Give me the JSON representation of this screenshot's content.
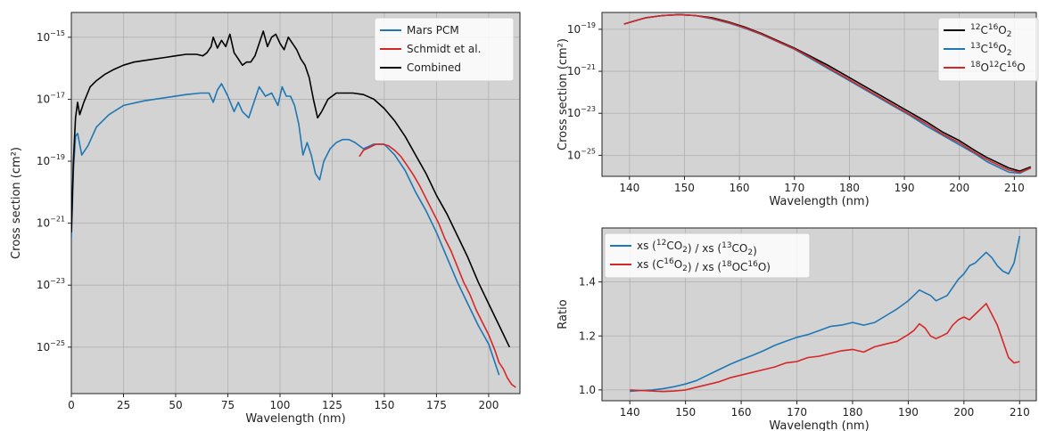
{
  "chart_data": [
    {
      "type": "line",
      "xlabel": "Wavelength (nm)",
      "ylabel": "Cross section (cm²)",
      "yscale": "log",
      "xlim": [
        0,
        215
      ],
      "ylim_log10": [
        -26.5,
        -14.2
      ],
      "xticks": [
        "0",
        "25",
        "50",
        "75",
        "100",
        "125",
        "150",
        "175",
        "200"
      ],
      "yticks": [
        "10-15",
        "10-17",
        "10-19",
        "10-21",
        "10-23",
        "10-25"
      ],
      "grid": true,
      "legend_position": "top-right",
      "series": [
        {
          "name": "Mars PCM",
          "color": "#1f77b4",
          "x": [
            0,
            1,
            2,
            3,
            5,
            8,
            12,
            18,
            25,
            35,
            45,
            55,
            62,
            66,
            68,
            70,
            72,
            75,
            78,
            80,
            82,
            85,
            88,
            90,
            93,
            96,
            99,
            101,
            103,
            105,
            107,
            109,
            111,
            113,
            115,
            117,
            119,
            121,
            124,
            127,
            130,
            133,
            136,
            140,
            145,
            150,
            155,
            160,
            165,
            170,
            175,
            180,
            185,
            190,
            195,
            200,
            205
          ],
          "y": [
            -21.5,
            -19.3,
            -18.2,
            -18.1,
            -18.8,
            -18.5,
            -17.9,
            -17.5,
            -17.2,
            -17.05,
            -16.95,
            -16.85,
            -16.8,
            -16.8,
            -17.1,
            -16.7,
            -16.5,
            -16.9,
            -17.4,
            -17.1,
            -17.4,
            -17.6,
            -17.0,
            -16.6,
            -16.9,
            -16.8,
            -17.2,
            -16.6,
            -16.9,
            -16.9,
            -17.2,
            -17.8,
            -18.8,
            -18.4,
            -18.8,
            -19.4,
            -19.6,
            -19.0,
            -18.6,
            -18.4,
            -18.3,
            -18.3,
            -18.4,
            -18.6,
            -18.45,
            -18.45,
            -18.8,
            -19.3,
            -20.0,
            -20.6,
            -21.3,
            -22.1,
            -22.9,
            -23.6,
            -24.3,
            -24.9,
            -25.9
          ]
        },
        {
          "name": "Schmidt et al.",
          "color": "#d62728",
          "x": [
            138,
            140,
            143,
            146,
            149,
            152,
            155,
            158,
            161,
            164,
            167,
            170,
            173,
            176,
            179,
            182,
            185,
            188,
            191,
            194,
            197,
            200,
            203,
            205,
            207,
            209,
            211,
            213
          ],
          "y": [
            -18.85,
            -18.65,
            -18.55,
            -18.45,
            -18.45,
            -18.5,
            -18.65,
            -18.85,
            -19.15,
            -19.45,
            -19.8,
            -20.2,
            -20.6,
            -21.0,
            -21.5,
            -21.9,
            -22.4,
            -22.9,
            -23.3,
            -23.8,
            -24.2,
            -24.6,
            -25.1,
            -25.5,
            -25.7,
            -26.0,
            -26.2,
            -26.3
          ]
        },
        {
          "name": "Combined",
          "color": "#000000",
          "x": [
            0,
            1,
            2,
            3,
            4,
            6,
            9,
            12,
            16,
            20,
            25,
            30,
            35,
            40,
            45,
            50,
            55,
            60,
            63,
            65,
            67,
            68,
            70,
            72,
            74,
            76,
            78,
            80,
            82,
            84,
            86,
            88,
            90,
            92,
            94,
            96,
            98,
            100,
            102,
            104,
            106,
            108,
            110,
            112,
            114,
            116,
            118,
            120,
            123,
            127,
            131,
            135,
            140,
            145,
            150,
            155,
            160,
            165,
            170,
            175,
            180,
            185,
            190,
            195,
            200,
            205,
            210
          ],
          "y": [
            -21.3,
            -19.0,
            -17.6,
            -17.1,
            -17.5,
            -17.1,
            -16.6,
            -16.4,
            -16.2,
            -16.05,
            -15.9,
            -15.8,
            -15.75,
            -15.7,
            -15.65,
            -15.6,
            -15.55,
            -15.55,
            -15.6,
            -15.5,
            -15.3,
            -15.0,
            -15.35,
            -15.1,
            -15.3,
            -14.9,
            -15.5,
            -15.7,
            -15.9,
            -15.8,
            -15.8,
            -15.6,
            -15.2,
            -14.8,
            -15.3,
            -15.0,
            -14.9,
            -15.2,
            -15.4,
            -15.0,
            -15.2,
            -15.4,
            -15.7,
            -15.9,
            -16.3,
            -17.0,
            -17.6,
            -17.4,
            -17.0,
            -16.8,
            -16.8,
            -16.8,
            -16.85,
            -17.0,
            -17.3,
            -17.7,
            -18.2,
            -18.8,
            -19.4,
            -20.1,
            -20.7,
            -21.4,
            -22.1,
            -22.9,
            -23.6,
            -24.3,
            -25.0
          ]
        }
      ]
    },
    {
      "type": "line",
      "xlabel": "Wavelength (nm)",
      "ylabel": "Cross section (cm²)",
      "yscale": "log",
      "xlim": [
        135,
        214
      ],
      "ylim_log10": [
        -26.0,
        -18.2
      ],
      "xticks": [
        "140",
        "150",
        "160",
        "170",
        "180",
        "190",
        "200",
        "210"
      ],
      "yticks": [
        "10-19",
        "10-21",
        "10-23",
        "10-25"
      ],
      "grid": true,
      "legend_position": "top-right",
      "series": [
        {
          "name": "12C16O2",
          "color": "#000000",
          "x": [
            139,
            141,
            143,
            146,
            149,
            152,
            155,
            158,
            161,
            164,
            167,
            170,
            173,
            176,
            179,
            182,
            185,
            188,
            191,
            194,
            197,
            200,
            203,
            205,
            207,
            209,
            211,
            213
          ],
          "y": [
            -18.75,
            -18.6,
            -18.45,
            -18.35,
            -18.3,
            -18.35,
            -18.45,
            -18.65,
            -18.9,
            -19.2,
            -19.55,
            -19.9,
            -20.3,
            -20.7,
            -21.15,
            -21.6,
            -22.05,
            -22.5,
            -22.95,
            -23.4,
            -23.9,
            -24.3,
            -24.8,
            -25.1,
            -25.35,
            -25.6,
            -25.75,
            -25.55
          ]
        },
        {
          "name": "13C16O2",
          "color": "#1f77b4",
          "x": [
            139,
            141,
            143,
            146,
            149,
            152,
            155,
            158,
            161,
            164,
            167,
            170,
            173,
            176,
            179,
            182,
            185,
            188,
            191,
            194,
            197,
            200,
            203,
            205,
            207,
            209,
            211,
            213
          ],
          "y": [
            -18.75,
            -18.6,
            -18.45,
            -18.35,
            -18.3,
            -18.35,
            -18.5,
            -18.7,
            -18.95,
            -19.25,
            -19.6,
            -19.95,
            -20.4,
            -20.85,
            -21.3,
            -21.75,
            -22.2,
            -22.65,
            -23.1,
            -23.6,
            -24.05,
            -24.5,
            -24.95,
            -25.3,
            -25.55,
            -25.8,
            -25.85,
            -25.6
          ]
        },
        {
          "name": "18O12C16O",
          "color": "#d62728",
          "x": [
            139,
            141,
            143,
            146,
            149,
            152,
            155,
            158,
            161,
            164,
            167,
            170,
            173,
            176,
            179,
            182,
            185,
            188,
            191,
            194,
            197,
            200,
            203,
            205,
            207,
            209,
            211,
            213
          ],
          "y": [
            -18.75,
            -18.6,
            -18.45,
            -18.35,
            -18.3,
            -18.35,
            -18.48,
            -18.68,
            -18.93,
            -19.23,
            -19.58,
            -19.93,
            -20.35,
            -20.8,
            -21.25,
            -21.7,
            -22.15,
            -22.6,
            -23.05,
            -23.5,
            -24.0,
            -24.4,
            -24.9,
            -25.2,
            -25.45,
            -25.7,
            -25.8,
            -25.6
          ]
        }
      ]
    },
    {
      "type": "line",
      "xlabel": "Wavelength (nm)",
      "ylabel": "Ratio",
      "xlim": [
        135,
        213
      ],
      "ylim": [
        0.96,
        1.6
      ],
      "xticks": [
        "140",
        "150",
        "160",
        "170",
        "180",
        "190",
        "200",
        "210"
      ],
      "yticks": [
        "1.0",
        "1.2",
        "1.4"
      ],
      "grid": true,
      "legend_position": "top-left",
      "series": [
        {
          "name": "xs (12CO2) / xs (13CO2)",
          "color": "#1f77b4",
          "x": [
            140,
            142,
            144,
            146,
            148,
            150,
            152,
            154,
            156,
            158,
            160,
            162,
            164,
            166,
            168,
            170,
            172,
            174,
            176,
            178,
            180,
            182,
            184,
            186,
            188,
            190,
            191,
            192,
            193,
            194,
            195,
            196,
            197,
            198,
            199,
            200,
            201,
            202,
            203,
            204,
            205,
            206,
            207,
            208,
            209,
            210
          ],
          "y": [
            0.995,
            0.998,
            1.0,
            1.005,
            1.012,
            1.022,
            1.035,
            1.055,
            1.075,
            1.095,
            1.112,
            1.128,
            1.145,
            1.165,
            1.18,
            1.195,
            1.205,
            1.22,
            1.235,
            1.24,
            1.25,
            1.24,
            1.25,
            1.275,
            1.3,
            1.33,
            1.35,
            1.37,
            1.36,
            1.35,
            1.33,
            1.34,
            1.35,
            1.38,
            1.41,
            1.43,
            1.46,
            1.47,
            1.49,
            1.51,
            1.49,
            1.46,
            1.44,
            1.43,
            1.47,
            1.57
          ]
        },
        {
          "name": "xs (C16O2) / xs (18OC16O)",
          "color": "#d62728",
          "x": [
            140,
            142,
            144,
            146,
            148,
            150,
            152,
            154,
            156,
            158,
            160,
            162,
            164,
            166,
            168,
            170,
            172,
            174,
            176,
            178,
            180,
            182,
            184,
            186,
            188,
            190,
            191,
            192,
            193,
            194,
            195,
            196,
            197,
            198,
            199,
            200,
            201,
            202,
            203,
            204,
            205,
            206,
            207,
            208,
            209,
            210
          ],
          "y": [
            1.0,
            0.998,
            0.996,
            0.994,
            0.996,
            1.0,
            1.01,
            1.02,
            1.03,
            1.045,
            1.055,
            1.065,
            1.075,
            1.085,
            1.1,
            1.105,
            1.12,
            1.125,
            1.135,
            1.145,
            1.15,
            1.14,
            1.16,
            1.17,
            1.18,
            1.205,
            1.22,
            1.245,
            1.23,
            1.2,
            1.19,
            1.2,
            1.21,
            1.24,
            1.26,
            1.27,
            1.26,
            1.28,
            1.3,
            1.32,
            1.28,
            1.24,
            1.18,
            1.12,
            1.1,
            1.105
          ]
        }
      ]
    }
  ]
}
